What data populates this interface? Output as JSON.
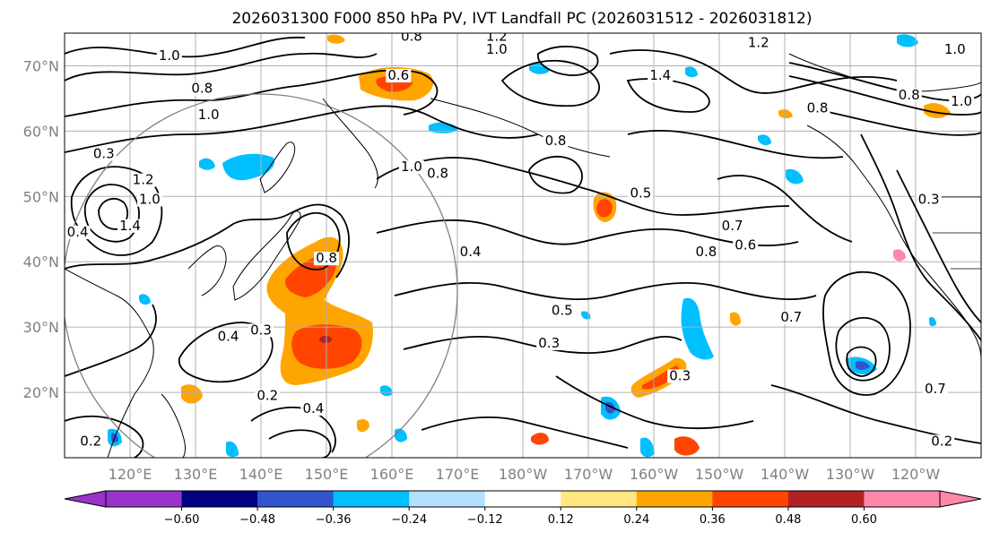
{
  "title": "2026031300 F000 850 hPa PV, IVT Landfall PC (2026031512 - 2026031812)",
  "map": {
    "projection": "PlateCarree",
    "lon_range": [
      110,
      250
    ],
    "lat_range": [
      10,
      75
    ],
    "lat_ticks": [
      {
        "value": 20,
        "label": "20°N"
      },
      {
        "value": 30,
        "label": "30°N"
      },
      {
        "value": 40,
        "label": "40°N"
      },
      {
        "value": 50,
        "label": "50°N"
      },
      {
        "value": 60,
        "label": "60°N"
      },
      {
        "value": 70,
        "label": "70°N"
      }
    ],
    "lon_ticks": [
      {
        "value": 120,
        "label": "120°E"
      },
      {
        "value": 130,
        "label": "130°E"
      },
      {
        "value": 140,
        "label": "140°E"
      },
      {
        "value": 150,
        "label": "150°E"
      },
      {
        "value": 160,
        "label": "160°E"
      },
      {
        "value": 170,
        "label": "170°E"
      },
      {
        "value": 180,
        "label": "180°W"
      },
      {
        "value": 190,
        "label": "170°W"
      },
      {
        "value": 200,
        "label": "160°W"
      },
      {
        "value": 210,
        "label": "150°W"
      },
      {
        "value": 220,
        "label": "140°W"
      },
      {
        "value": 230,
        "label": "130°W"
      },
      {
        "value": 240,
        "label": "120°W"
      }
    ],
    "contour_labels": [
      {
        "text": "1.0",
        "lon": 126,
        "lat": 71
      },
      {
        "text": "0.8",
        "lon": 131,
        "lat": 66
      },
      {
        "text": "1.0",
        "lon": 132,
        "lat": 62
      },
      {
        "text": "1.2",
        "lon": 122,
        "lat": 52
      },
      {
        "text": "1.0",
        "lon": 123,
        "lat": 49
      },
      {
        "text": "0.3",
        "lon": 116,
        "lat": 56
      },
      {
        "text": "0.4",
        "lon": 112,
        "lat": 44
      },
      {
        "text": "1.4",
        "lon": 120,
        "lat": 45
      },
      {
        "text": "0.8",
        "lon": 150,
        "lat": 40
      },
      {
        "text": "1.0",
        "lon": 163,
        "lat": 54
      },
      {
        "text": "0.8",
        "lon": 167,
        "lat": 53
      },
      {
        "text": "1.2",
        "lon": 176,
        "lat": 74
      },
      {
        "text": "1.0",
        "lon": 176,
        "lat": 72
      },
      {
        "text": "0.6",
        "lon": 161,
        "lat": 68
      },
      {
        "text": "0.8",
        "lon": 163,
        "lat": 74
      },
      {
        "text": "0.4",
        "lon": 172,
        "lat": 41
      },
      {
        "text": "0.5",
        "lon": 186,
        "lat": 32
      },
      {
        "text": "0.3",
        "lon": 184,
        "lat": 27
      },
      {
        "text": "0.8",
        "lon": 185,
        "lat": 58
      },
      {
        "text": "1.4",
        "lon": 201,
        "lat": 68
      },
      {
        "text": "1.2",
        "lon": 216,
        "lat": 73
      },
      {
        "text": "0.5",
        "lon": 198,
        "lat": 50
      },
      {
        "text": "0.7",
        "lon": 212,
        "lat": 45
      },
      {
        "text": "0.8",
        "lon": 208,
        "lat": 41
      },
      {
        "text": "0.6",
        "lon": 214,
        "lat": 42
      },
      {
        "text": "0.3",
        "lon": 204,
        "lat": 22
      },
      {
        "text": "0.7",
        "lon": 221,
        "lat": 31
      },
      {
        "text": "0.4",
        "lon": 135,
        "lat": 28
      },
      {
        "text": "0.3",
        "lon": 140,
        "lat": 29
      },
      {
        "text": "0.2",
        "lon": 141,
        "lat": 19
      },
      {
        "text": "0.4",
        "lon": 148,
        "lat": 17
      },
      {
        "text": "0.2",
        "lon": 114,
        "lat": 12
      },
      {
        "text": "0.2",
        "lon": 244,
        "lat": 12
      },
      {
        "text": "0.7",
        "lon": 243,
        "lat": 20
      },
      {
        "text": "0.8",
        "lon": 239,
        "lat": 65
      },
      {
        "text": "1.0",
        "lon": 246,
        "lat": 72
      },
      {
        "text": "1.0",
        "lon": 247,
        "lat": 64
      },
      {
        "text": "0.3",
        "lon": 242,
        "lat": 49
      },
      {
        "text": "0.8",
        "lon": 225,
        "lat": 63
      }
    ]
  },
  "colorbar": {
    "colors": [
      "#9933cc",
      "#000080",
      "#3355cc",
      "#00bfff",
      "#b3e0ff",
      "#ffffff",
      "#ffe680",
      "#ffa500",
      "#ff4500",
      "#b22222",
      "#ff88aa"
    ],
    "extend_low_color": "#9933cc",
    "extend_high_color": "#ff88aa",
    "boundaries": [
      -0.72,
      -0.6,
      -0.48,
      -0.36,
      -0.24,
      -0.12,
      0.12,
      0.24,
      0.36,
      0.48,
      0.6,
      0.72
    ],
    "tick_labels": [
      "−0.60",
      "−0.48",
      "−0.36",
      "−0.24",
      "−0.12",
      "0.12",
      "0.24",
      "0.36",
      "0.48",
      "0.60"
    ]
  },
  "colors": {
    "orange": "#ffa500",
    "red": "#ff4500",
    "light_yellow": "#ffe680",
    "cyan": "#00bfff",
    "blue": "#3355cc",
    "gridline": "#b0b0b0",
    "circle": "#808080"
  }
}
